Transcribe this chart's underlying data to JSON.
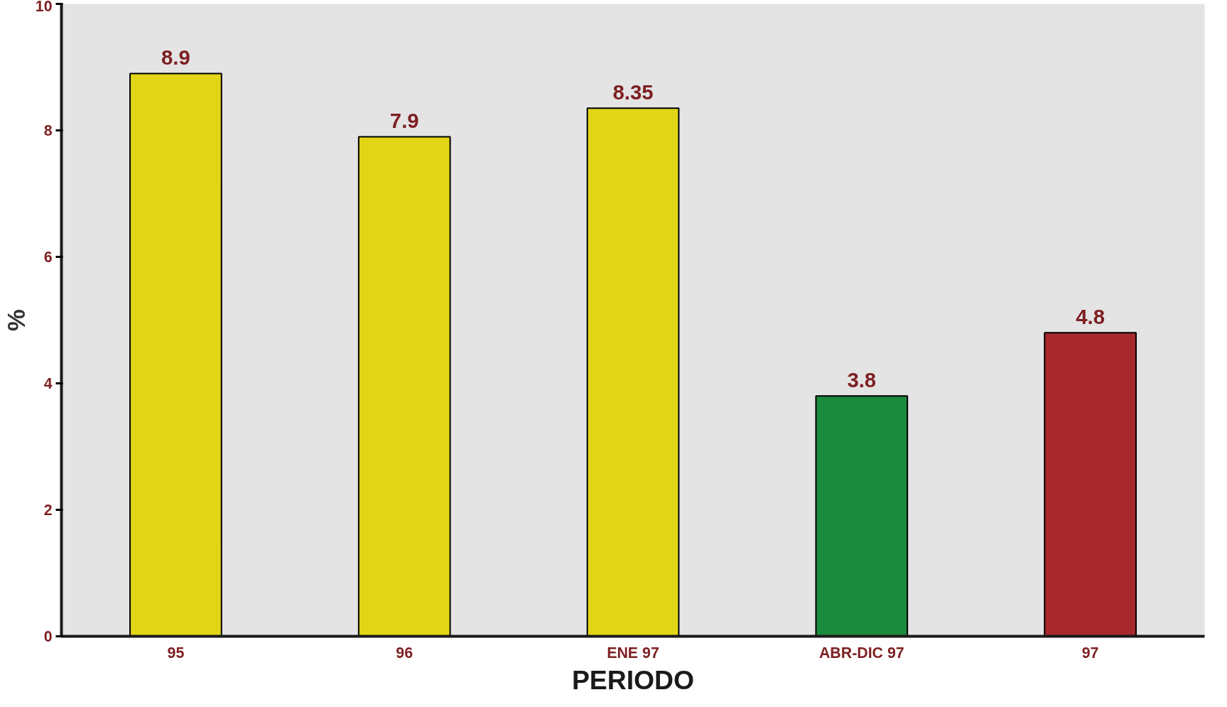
{
  "chart_data": {
    "type": "bar",
    "xlabel": "PERIODO",
    "ylabel": "%",
    "categories": [
      "95",
      "96",
      "ENE 97",
      "ABR-DIC 97",
      "97"
    ],
    "values": [
      8.9,
      7.9,
      8.35,
      3.8,
      4.8
    ],
    "colors": [
      "#e2d516",
      "#e2d516",
      "#e2d516",
      "#1a8a3c",
      "#a8292d"
    ],
    "ylim": [
      0,
      10
    ],
    "yticks": [
      0,
      2,
      4,
      6,
      8,
      10
    ],
    "data_labels": true
  }
}
